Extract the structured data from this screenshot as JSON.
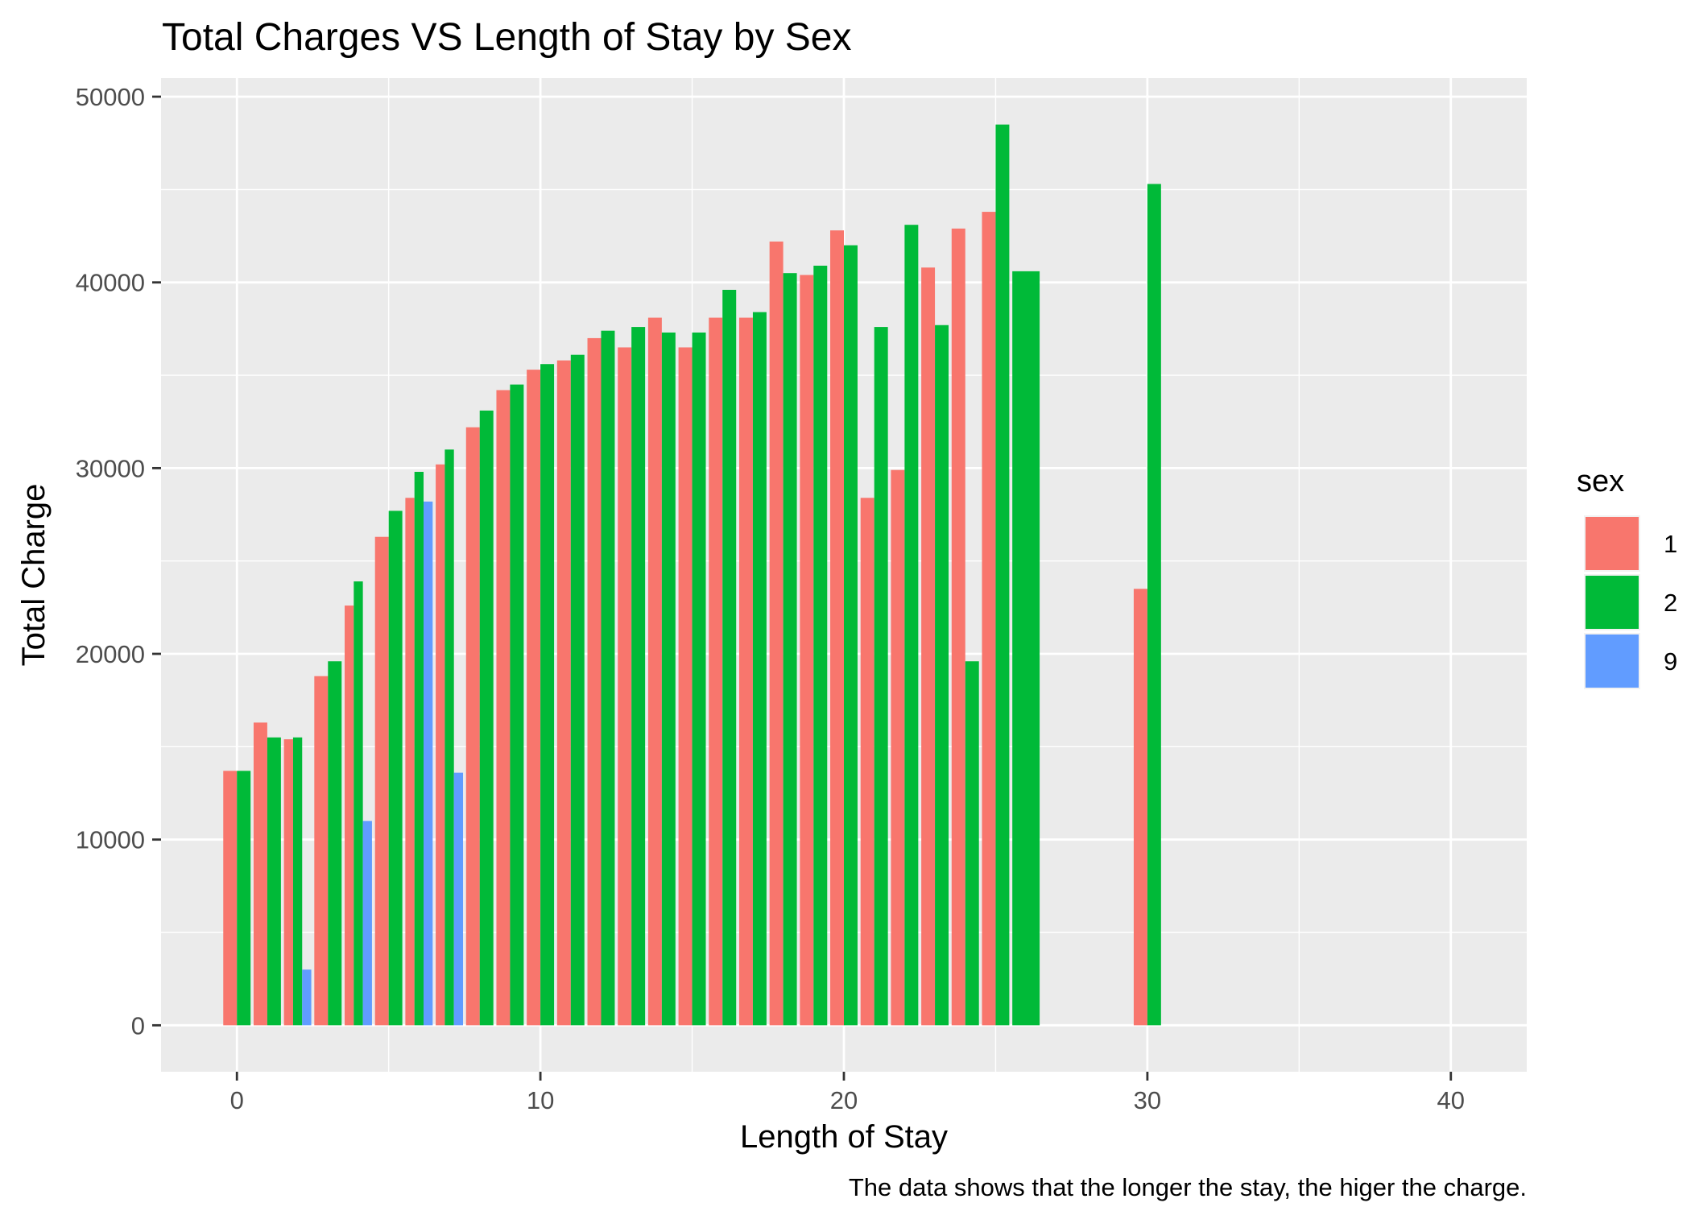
{
  "chart_data": {
    "type": "bar",
    "title": "Total Charges VS Length of Stay by Sex",
    "xlabel": "Length of Stay",
    "ylabel": "Total Charge",
    "caption": "The data shows that the longer the stay, the higer the charge.",
    "xlim": [
      -2.5,
      42.5
    ],
    "ylim": [
      -2500,
      51000
    ],
    "x_ticks": [
      0,
      10,
      20,
      30,
      40
    ],
    "y_ticks": [
      0,
      10000,
      20000,
      30000,
      40000,
      50000
    ],
    "grid": true,
    "legend": {
      "title": "sex",
      "position": "right"
    },
    "series": [
      {
        "name": "1",
        "color": "#F8766D",
        "points": [
          [
            0,
            13700
          ],
          [
            1,
            16300
          ],
          [
            2,
            15400
          ],
          [
            3,
            18800
          ],
          [
            4,
            22600
          ],
          [
            5,
            26300
          ],
          [
            6,
            28400
          ],
          [
            7,
            30200
          ],
          [
            8,
            32200
          ],
          [
            9,
            34200
          ],
          [
            10,
            35300
          ],
          [
            11,
            35800
          ],
          [
            12,
            37000
          ],
          [
            13,
            36500
          ],
          [
            14,
            38100
          ],
          [
            15,
            36500
          ],
          [
            16,
            38100
          ],
          [
            17,
            38100
          ],
          [
            18,
            42200
          ],
          [
            19,
            40400
          ],
          [
            20,
            42800
          ],
          [
            21,
            28400
          ],
          [
            22,
            29900
          ],
          [
            23,
            40800
          ],
          [
            24,
            42900
          ],
          [
            25,
            43800
          ],
          [
            30,
            23500
          ]
        ]
      },
      {
        "name": "2",
        "color": "#00BA38",
        "points": [
          [
            0,
            13700
          ],
          [
            1,
            15500
          ],
          [
            2,
            15500
          ],
          [
            3,
            19600
          ],
          [
            4,
            23900
          ],
          [
            5,
            27700
          ],
          [
            6,
            29800
          ],
          [
            7,
            31000
          ],
          [
            8,
            33100
          ],
          [
            9,
            34500
          ],
          [
            10,
            35600
          ],
          [
            11,
            36100
          ],
          [
            12,
            37400
          ],
          [
            13,
            37600
          ],
          [
            14,
            37300
          ],
          [
            15,
            37300
          ],
          [
            16,
            39600
          ],
          [
            17,
            38400
          ],
          [
            18,
            40500
          ],
          [
            19,
            40900
          ],
          [
            20,
            42000
          ],
          [
            21,
            37600
          ],
          [
            22,
            43100
          ],
          [
            23,
            37700
          ],
          [
            24,
            19600
          ],
          [
            25,
            48500
          ],
          [
            26,
            40600
          ],
          [
            30,
            45300
          ]
        ]
      },
      {
        "name": "9",
        "color": "#619CFF",
        "points": [
          [
            2,
            3000
          ],
          [
            4,
            11000
          ],
          [
            6,
            28200
          ],
          [
            7,
            13600
          ]
        ]
      }
    ]
  }
}
